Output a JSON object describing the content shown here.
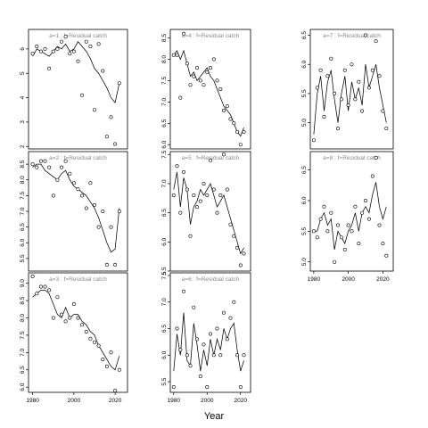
{
  "chart_data": {
    "type": "scatter",
    "xlabel": "Year",
    "panels": [
      {
        "title": "a=1  :  f=Residual catch",
        "ylim": [
          1.9,
          6.8
        ],
        "yticks": [
          "2",
          "3",
          "4",
          "5",
          "6"
        ],
        "ytick_values": [
          2,
          3,
          4,
          5,
          6
        ],
        "xticks": [],
        "x": [
          1980,
          1982,
          1984,
          1986,
          1988,
          1990,
          1992,
          1994,
          1996,
          1998,
          2000,
          2002,
          2004,
          2006,
          2008,
          2010,
          2012,
          2014,
          2016,
          2018,
          2020,
          2022
        ],
        "points": [
          5.8,
          6.1,
          5.9,
          6.0,
          5.2,
          5.9,
          6.0,
          6.3,
          6.5,
          5.8,
          5.9,
          5.5,
          4.1,
          6.3,
          6.1,
          3.5,
          6.2,
          5.1,
          2.4,
          3.2,
          2.1,
          4.6
        ],
        "fitted": [
          5.7,
          6.0,
          5.9,
          5.8,
          5.7,
          5.9,
          6.1,
          6.0,
          6.2,
          5.9,
          6.0,
          6.3,
          6.1,
          5.9,
          5.6,
          5.2,
          5.0,
          4.7,
          4.4,
          4.0,
          3.8,
          4.6
        ]
      },
      {
        "title": "a=2  :  f=Residual catch",
        "ylim": [
          5.1,
          8.9
        ],
        "yticks": [
          "5.5",
          "6.0",
          "6.5",
          "7.0",
          "7.5",
          "8.0",
          "8.5"
        ],
        "ytick_values": [
          5.5,
          6,
          6.5,
          7,
          7.5,
          8,
          8.5
        ],
        "xticks": [],
        "x": [
          1980,
          1982,
          1984,
          1986,
          1988,
          1990,
          1992,
          1994,
          1996,
          1998,
          2000,
          2002,
          2004,
          2006,
          2008,
          2010,
          2012,
          2014,
          2016,
          2018,
          2020,
          2022
        ],
        "points": [
          8.5,
          8.4,
          8.6,
          8.6,
          8.4,
          7.5,
          8.0,
          8.4,
          8.6,
          8.2,
          7.9,
          7.7,
          7.5,
          7.1,
          7.9,
          7.2,
          6.5,
          7.0,
          5.3,
          6.5,
          5.3,
          7.0
        ],
        "fitted": [
          8.4,
          8.5,
          8.5,
          8.3,
          8.2,
          8.1,
          8.0,
          8.2,
          8.3,
          8.0,
          7.8,
          7.7,
          7.6,
          7.5,
          7.3,
          7.1,
          6.8,
          6.4,
          6.0,
          5.7,
          5.8,
          7.1
        ]
      },
      {
        "title": "a=3  :  f=Residual catch",
        "ylim": [
          5.85,
          9.3
        ],
        "yticks": [
          "6.0",
          "6.5",
          "7.0",
          "7.5",
          "8.0",
          "8.5",
          "9.0"
        ],
        "ytick_values": [
          6,
          6.5,
          7,
          7.5,
          8,
          8.5,
          9
        ],
        "xticks": [
          "1980",
          "2000",
          "2020"
        ],
        "xtick_values": [
          1980,
          2000,
          2020
        ],
        "x": [
          1980,
          1982,
          1984,
          1986,
          1988,
          1990,
          1992,
          1994,
          1996,
          1998,
          2000,
          2002,
          2004,
          2006,
          2008,
          2010,
          2012,
          2014,
          2016,
          2018,
          2020,
          2022
        ],
        "points": [
          9.2,
          8.7,
          8.9,
          8.9,
          8.8,
          8.0,
          8.6,
          8.1,
          7.9,
          8.0,
          8.4,
          8.0,
          7.8,
          7.6,
          7.4,
          7.3,
          7.2,
          6.8,
          6.6,
          7.0,
          5.9,
          6.5
        ],
        "fitted": [
          8.6,
          8.7,
          8.8,
          8.8,
          8.7,
          8.4,
          8.1,
          8.0,
          8.3,
          8.0,
          8.1,
          8.1,
          7.9,
          7.8,
          7.6,
          7.5,
          7.2,
          7.0,
          6.8,
          6.6,
          6.5,
          6.9
        ]
      },
      {
        "title": "a=4  :  f=Residual catch",
        "ylim": [
          5.9,
          8.7
        ],
        "yticks": [
          "6.0",
          "6.5",
          "7.0",
          "7.5",
          "8.0",
          "8.5"
        ],
        "ytick_values": [
          6,
          6.5,
          7,
          7.5,
          8,
          8.5
        ],
        "xticks": [],
        "x": [
          1980,
          1982,
          1984,
          1986,
          1988,
          1990,
          1992,
          1994,
          1996,
          1998,
          2000,
          2002,
          2004,
          2006,
          2008,
          2010,
          2012,
          2014,
          2016,
          2018,
          2020,
          2022
        ],
        "points": [
          8.1,
          8.1,
          7.1,
          8.6,
          7.9,
          7.4,
          7.6,
          7.8,
          7.5,
          7.4,
          7.7,
          7.8,
          8.0,
          7.5,
          7.3,
          6.8,
          6.9,
          6.6,
          6.5,
          6.3,
          6.0,
          6.3
        ],
        "fitted": [
          8.1,
          8.2,
          8.0,
          8.2,
          7.9,
          7.6,
          7.7,
          7.5,
          7.6,
          7.7,
          7.8,
          7.6,
          7.5,
          7.3,
          7.1,
          6.9,
          6.8,
          6.7,
          6.5,
          6.3,
          6.2,
          6.4
        ]
      },
      {
        "title": "a=5  :  f=Residual catch",
        "ylim": [
          5.5,
          7.55
        ],
        "yticks": [
          "5.5",
          "6.0",
          "6.5",
          "7.0",
          "7.5"
        ],
        "ytick_values": [
          5.5,
          6,
          6.5,
          7,
          7.5
        ],
        "xticks": [],
        "x": [
          1980,
          1982,
          1984,
          1986,
          1988,
          1990,
          1992,
          1994,
          1996,
          1998,
          2000,
          2002,
          2004,
          2006,
          2008,
          2010,
          2012,
          2014,
          2016,
          2018,
          2020,
          2022
        ],
        "points": [
          6.8,
          7.3,
          6.5,
          7.2,
          6.9,
          6.1,
          6.8,
          6.6,
          6.7,
          7.0,
          6.8,
          7.4,
          6.9,
          6.5,
          6.8,
          7.5,
          6.9,
          6.3,
          6.1,
          5.9,
          5.6,
          5.8
        ],
        "fitted": [
          6.9,
          7.2,
          6.6,
          7.1,
          6.9,
          6.3,
          6.6,
          6.7,
          6.9,
          6.8,
          6.9,
          7.0,
          6.8,
          6.6,
          6.7,
          6.8,
          6.6,
          6.4,
          6.2,
          6.0,
          5.8,
          5.9
        ]
      },
      {
        "title": "a=6  :  f=Residual catch",
        "ylim": [
          5.3,
          7.55
        ],
        "yticks": [
          "5.5",
          "6.0",
          "6.5",
          "7.0",
          "7.5"
        ],
        "ytick_values": [
          5.5,
          6,
          6.5,
          7,
          7.5
        ],
        "xticks": [
          "1980",
          "2000",
          "2020"
        ],
        "xtick_values": [
          1980,
          2000,
          2020
        ],
        "x": [
          1980,
          1982,
          1984,
          1986,
          1988,
          1990,
          1992,
          1994,
          1996,
          1998,
          2000,
          2002,
          2004,
          2006,
          2008,
          2010,
          2012,
          2014,
          2016,
          2018,
          2020,
          2022
        ],
        "points": [
          5.4,
          6.5,
          6.1,
          7.2,
          6.0,
          5.8,
          6.9,
          6.3,
          5.6,
          6.2,
          5.4,
          6.4,
          6.0,
          6.5,
          6.0,
          6.8,
          6.3,
          6.7,
          7.0,
          6.0,
          5.4,
          6.0
        ],
        "fitted": [
          5.7,
          6.4,
          6.0,
          6.8,
          5.9,
          5.8,
          6.6,
          6.2,
          5.7,
          6.1,
          5.8,
          6.3,
          6.0,
          6.3,
          6.1,
          6.5,
          6.3,
          6.5,
          6.6,
          6.1,
          5.7,
          5.9
        ]
      },
      {
        "title": "a=7  :  f=Residual catch",
        "ylim": [
          4.55,
          6.6
        ],
        "yticks": [
          "5.0",
          "5.5",
          "6.0",
          "6.5"
        ],
        "ytick_values": [
          5,
          5.5,
          6,
          6.5
        ],
        "xticks": [],
        "x": [
          1980,
          1982,
          1984,
          1986,
          1988,
          1990,
          1992,
          1994,
          1996,
          1998,
          2000,
          2002,
          2004,
          2006,
          2008,
          2010,
          2012,
          2014,
          2016,
          2018,
          2020,
          2022
        ],
        "points": [
          4.7,
          5.6,
          5.9,
          5.1,
          5.8,
          6.1,
          5.5,
          4.9,
          5.4,
          5.9,
          5.3,
          6.0,
          5.4,
          5.7,
          5.2,
          6.5,
          5.6,
          5.9,
          6.4,
          5.8,
          5.2,
          4.9
        ],
        "fitted": [
          4.8,
          5.5,
          5.8,
          5.2,
          5.7,
          5.9,
          5.4,
          5.0,
          5.5,
          5.8,
          5.2,
          5.7,
          5.4,
          5.6,
          5.3,
          6.0,
          5.6,
          5.8,
          6.0,
          5.6,
          5.3,
          5.0
        ]
      },
      {
        "title": "a=8  :  f=Residual catch",
        "ylim": [
          4.85,
          6.8
        ],
        "yticks": [
          "5.0",
          "5.5",
          "6.0",
          "6.5"
        ],
        "ytick_values": [
          5,
          5.5,
          6,
          6.5
        ],
        "xticks": [
          "1980",
          "2000",
          "2020"
        ],
        "xtick_values": [
          1980,
          2000,
          2020
        ],
        "x": [
          1980,
          1982,
          1984,
          1986,
          1988,
          1990,
          1992,
          1994,
          1996,
          1998,
          2000,
          2002,
          2004,
          2006,
          2008,
          2010,
          2012,
          2014,
          2016,
          2018,
          2020,
          2022
        ],
        "points": [
          5.5,
          5.4,
          5.7,
          5.9,
          5.5,
          5.8,
          5.0,
          5.6,
          5.4,
          5.2,
          5.6,
          5.5,
          5.9,
          5.3,
          5.8,
          6.0,
          5.7,
          6.4,
          6.7,
          5.6,
          5.3,
          5.1
        ],
        "fitted": [
          5.5,
          5.5,
          5.7,
          5.8,
          5.6,
          5.7,
          5.2,
          5.5,
          5.4,
          5.3,
          5.5,
          5.6,
          5.8,
          5.5,
          5.8,
          5.9,
          5.8,
          6.1,
          6.3,
          5.9,
          5.7,
          5.9
        ]
      }
    ]
  }
}
